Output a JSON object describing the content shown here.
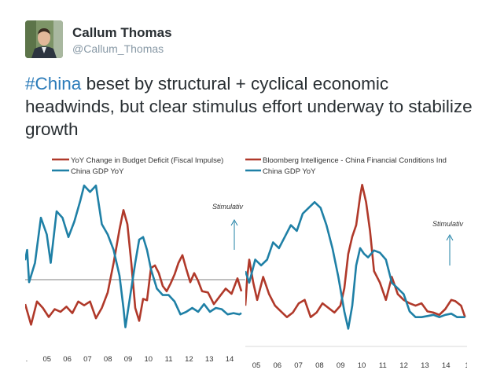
{
  "tweet": {
    "display_name": "Callum Thomas",
    "handle": "@Callum_Thomas",
    "hashtag": "#China",
    "text": " beset by structural + cyclical economic headwinds, but clear stimulus effort underway to stabilize growth"
  },
  "colors": {
    "red_series": "#b0392a",
    "blue_series": "#1f80a6",
    "hashtag": "#2b7bb9",
    "axis_text": "#333333"
  },
  "chart_data": [
    {
      "type": "line",
      "title": "",
      "legend": [
        "YoY Change in Budget Deficit (Fiscal Impulse)",
        "China GDP YoY"
      ],
      "annotation": "Stimulativ",
      "xlim": [
        2004.0,
        2015.2
      ],
      "x_ticks": [
        ".",
        "05",
        "06",
        "07",
        "08",
        "09",
        "10",
        "11",
        "12",
        "13",
        "14",
        "."
      ],
      "grid": false,
      "series": [
        {
          "name": "YoY Change in Budget Deficit (Fiscal Impulse)",
          "x": [
            2004.0,
            2004.3,
            2004.6,
            2004.9,
            2005.2,
            2005.5,
            2005.8,
            2006.1,
            2006.4,
            2006.7,
            2007.0,
            2007.3,
            2007.6,
            2007.9,
            2008.2,
            2008.5,
            2008.8,
            2009.0,
            2009.2,
            2009.4,
            2009.6,
            2009.8,
            2010.0,
            2010.2,
            2010.4,
            2010.6,
            2010.8,
            2011.0,
            2011.2,
            2011.4,
            2011.6,
            2011.8,
            2012.0,
            2012.2,
            2012.4,
            2012.6,
            2012.8,
            2013.0,
            2013.3,
            2013.6,
            2013.9,
            2014.2,
            2014.5,
            2014.8,
            2015.0
          ],
          "values": [
            -1.2,
            -2.8,
            -1.0,
            -1.5,
            -2.2,
            -1.6,
            -1.8,
            -1.4,
            -1.9,
            -1.0,
            -1.3,
            -1.0,
            -2.3,
            -1.5,
            -0.3,
            2.0,
            4.6,
            6.1,
            5.0,
            2.0,
            -1.5,
            -2.5,
            -0.8,
            -0.9,
            1.6,
            1.8,
            1.2,
            0.2,
            -0.2,
            0.4,
            1.1,
            2.0,
            2.6,
            1.5,
            0.5,
            1.2,
            0.6,
            -0.2,
            -0.3,
            -1.2,
            -0.6,
            0.0,
            -0.4,
            0.8,
            -0.2
          ]
        },
        {
          "name": "China GDP YoY",
          "x": [
            2004.0,
            2004.1,
            2004.2,
            2004.5,
            2004.8,
            2005.1,
            2005.3,
            2005.6,
            2005.9,
            2006.2,
            2006.5,
            2006.8,
            2007.0,
            2007.3,
            2007.6,
            2007.9,
            2008.2,
            2008.5,
            2008.8,
            2009.0,
            2009.1,
            2009.3,
            2009.6,
            2009.8,
            2010.0,
            2010.2,
            2010.4,
            2010.7,
            2011.0,
            2011.3,
            2011.6,
            2011.9,
            2012.2,
            2012.5,
            2012.8,
            2013.1,
            2013.4,
            2013.7,
            2014.0,
            2014.3,
            2014.6,
            2014.9,
            2015.0
          ],
          "values": [
            2.2,
            3.0,
            0.5,
            2.0,
            5.5,
            4.2,
            2.0,
            6.0,
            5.5,
            4.0,
            5.2,
            6.8,
            8.0,
            7.5,
            8.0,
            5.0,
            4.2,
            3.0,
            1.0,
            -1.5,
            -3.0,
            -1.0,
            2.0,
            3.8,
            4.0,
            3.0,
            1.5,
            0.0,
            -0.5,
            -0.5,
            -1.0,
            -2.0,
            -1.8,
            -1.5,
            -1.8,
            -1.2,
            -1.8,
            -1.5,
            -1.6,
            -2.0,
            -1.9,
            -2.0,
            -1.9
          ]
        }
      ]
    },
    {
      "type": "line",
      "title": "",
      "legend": [
        "Bloomberg Intelligence - China Financial Conditions Ind",
        "China GDP YoY"
      ],
      "annotation": "Stimulativ",
      "xlim": [
        2004.0,
        2015.2
      ],
      "x_ticks": [
        "05",
        "06",
        "07",
        "08",
        "09",
        "10",
        "11",
        "12",
        "13",
        "14",
        "1"
      ],
      "grid": false,
      "series": [
        {
          "name": "Bloomberg Intelligence - China Financial Conditions Ind",
          "x": [
            2004.0,
            2004.1,
            2004.2,
            2004.4,
            2004.6,
            2004.9,
            2005.2,
            2005.5,
            2005.8,
            2006.1,
            2006.4,
            2006.7,
            2007.0,
            2007.3,
            2007.6,
            2007.9,
            2008.2,
            2008.5,
            2008.8,
            2009.0,
            2009.2,
            2009.4,
            2009.6,
            2009.8,
            2009.9,
            2010.1,
            2010.3,
            2010.5,
            2010.8,
            2011.1,
            2011.4,
            2011.7,
            2012.0,
            2012.3,
            2012.6,
            2012.9,
            2013.2,
            2013.5,
            2013.8,
            2014.1,
            2014.4,
            2014.6,
            2014.9,
            2015.1
          ],
          "values": [
            -1.0,
            1.5,
            3.0,
            1.0,
            -0.5,
            1.5,
            0.0,
            -1.0,
            -1.5,
            -2.0,
            -1.6,
            -0.8,
            -0.5,
            -2.0,
            -1.6,
            -0.8,
            -1.2,
            -1.6,
            -1.0,
            0.5,
            3.5,
            5.0,
            6.0,
            8.5,
            9.5,
            8.0,
            5.5,
            2.0,
            1.0,
            -0.5,
            1.5,
            0.0,
            -0.5,
            -0.8,
            -1.0,
            -0.8,
            -1.5,
            -1.6,
            -1.8,
            -1.3,
            -0.5,
            -0.6,
            -1.0,
            -2.0
          ]
        },
        {
          "name": "China GDP YoY",
          "x": [
            2004.0,
            2004.2,
            2004.5,
            2004.8,
            2005.1,
            2005.4,
            2005.7,
            2006.0,
            2006.3,
            2006.6,
            2006.9,
            2007.2,
            2007.5,
            2007.8,
            2008.1,
            2008.4,
            2008.7,
            2009.0,
            2009.2,
            2009.4,
            2009.6,
            2009.8,
            2010.0,
            2010.2,
            2010.5,
            2010.8,
            2011.1,
            2011.4,
            2011.7,
            2012.0,
            2012.3,
            2012.6,
            2012.9,
            2013.2,
            2013.5,
            2013.8,
            2014.1,
            2014.4,
            2014.7,
            2015.0,
            2015.1
          ],
          "values": [
            2.0,
            1.0,
            3.0,
            2.5,
            3.0,
            4.5,
            4.0,
            5.0,
            6.0,
            5.5,
            7.0,
            7.5,
            8.0,
            7.5,
            6.0,
            4.0,
            1.5,
            -1.5,
            -3.0,
            -1.0,
            2.5,
            4.0,
            3.5,
            3.2,
            3.8,
            3.6,
            3.0,
            1.0,
            0.5,
            0.0,
            -1.5,
            -2.0,
            -2.0,
            -1.9,
            -1.8,
            -2.0,
            -1.8,
            -1.7,
            -2.0,
            -2.0,
            -2.0
          ]
        }
      ]
    }
  ]
}
